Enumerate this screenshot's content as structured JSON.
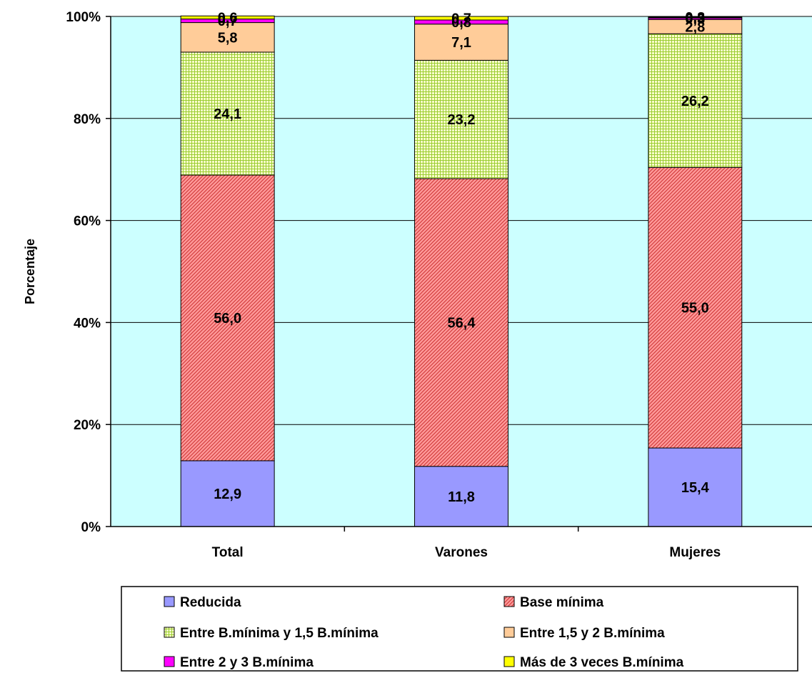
{
  "chart_data": {
    "type": "bar",
    "stacked": true,
    "percent": true,
    "categories": [
      "Total",
      "Varones",
      "Mujeres"
    ],
    "ylabel": "Porcentaje",
    "ylim": [
      0,
      100
    ],
    "yticks": [
      "0%",
      "20%",
      "40%",
      "60%",
      "80%",
      "100%"
    ],
    "grid": true,
    "legend_position": "bottom",
    "series": [
      {
        "name": "Reducida",
        "values": [
          12.9,
          11.8,
          15.4
        ],
        "labels": [
          "12,9",
          "11,8",
          "15,4"
        ],
        "color": "#9999ff",
        "pattern": "none"
      },
      {
        "name": "Base mínima",
        "values": [
          56.0,
          56.4,
          55.0
        ],
        "labels": [
          "56,0",
          "56,4",
          "55,0"
        ],
        "color": "#ff9999",
        "pattern": "diagonal"
      },
      {
        "name": "Entre B.mínima y 1,5 B.mínima",
        "values": [
          24.1,
          23.2,
          26.2
        ],
        "labels": [
          "24,1",
          "23,2",
          "26,2"
        ],
        "color": "#ffffcc",
        "pattern": "grid"
      },
      {
        "name": "Entre 1,5 y 2 B.mínima",
        "values": [
          5.8,
          7.1,
          2.8
        ],
        "labels": [
          "5,8",
          "7,1",
          "2,8"
        ],
        "color": "#ffcc99",
        "pattern": "none"
      },
      {
        "name": "Entre 2 y 3 B.mínima",
        "values": [
          0.7,
          0.8,
          0.3
        ],
        "labels": [
          "0,7",
          "0,8",
          "0,3"
        ],
        "color": "#ff00ff",
        "pattern": "none"
      },
      {
        "name": "Más de 3 veces B.mínima",
        "values": [
          0.6,
          0.7,
          0.3
        ],
        "labels": [
          "0,6",
          "0,7",
          "0,3"
        ],
        "color": "#ffff00",
        "pattern": "none"
      }
    ],
    "colors": {
      "plot_background": "#ccffff",
      "gridline": "#000000",
      "mujeres_top_band": "#000000"
    }
  }
}
